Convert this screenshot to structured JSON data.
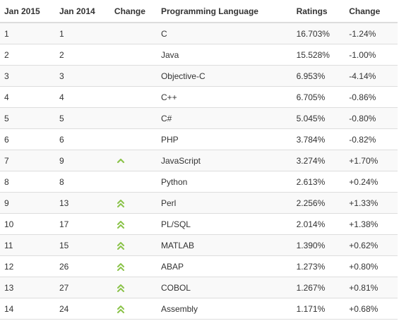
{
  "table": {
    "headers": {
      "jan2015": "Jan 2015",
      "jan2014": "Jan 2014",
      "change": "Change",
      "language": "Programming Language",
      "ratings": "Ratings",
      "diff": "Change"
    },
    "colors": {
      "arrow": "#8bc34a",
      "header_border": "#dddddd",
      "row_alt": "#f9f9f9"
    },
    "rows": [
      {
        "r2015": "1",
        "r2014": "1",
        "trend": "none",
        "language": "C",
        "rating": "16.703%",
        "diff": "-1.24%"
      },
      {
        "r2015": "2",
        "r2014": "2",
        "trend": "none",
        "language": "Java",
        "rating": "15.528%",
        "diff": "-1.00%"
      },
      {
        "r2015": "3",
        "r2014": "3",
        "trend": "none",
        "language": "Objective-C",
        "rating": "6.953%",
        "diff": "-4.14%"
      },
      {
        "r2015": "4",
        "r2014": "4",
        "trend": "none",
        "language": "C++",
        "rating": "6.705%",
        "diff": "-0.86%"
      },
      {
        "r2015": "5",
        "r2014": "5",
        "trend": "none",
        "language": "C#",
        "rating": "5.045%",
        "diff": "-0.80%"
      },
      {
        "r2015": "6",
        "r2014": "6",
        "trend": "none",
        "language": "PHP",
        "rating": "3.784%",
        "diff": "-0.82%"
      },
      {
        "r2015": "7",
        "r2014": "9",
        "trend": "up",
        "language": "JavaScript",
        "rating": "3.274%",
        "diff": "+1.70%"
      },
      {
        "r2015": "8",
        "r2014": "8",
        "trend": "none",
        "language": "Python",
        "rating": "2.613%",
        "diff": "+0.24%"
      },
      {
        "r2015": "9",
        "r2014": "13",
        "trend": "double-up",
        "language": "Perl",
        "rating": "2.256%",
        "diff": "+1.33%"
      },
      {
        "r2015": "10",
        "r2014": "17",
        "trend": "double-up",
        "language": "PL/SQL",
        "rating": "2.014%",
        "diff": "+1.38%"
      },
      {
        "r2015": "11",
        "r2014": "15",
        "trend": "double-up",
        "language": "MATLAB",
        "rating": "1.390%",
        "diff": "+0.62%"
      },
      {
        "r2015": "12",
        "r2014": "26",
        "trend": "double-up",
        "language": "ABAP",
        "rating": "1.273%",
        "diff": "+0.80%"
      },
      {
        "r2015": "13",
        "r2014": "27",
        "trend": "double-up",
        "language": "COBOL",
        "rating": "1.267%",
        "diff": "+0.81%"
      },
      {
        "r2015": "14",
        "r2014": "24",
        "trend": "double-up",
        "language": "Assembly",
        "rating": "1.171%",
        "diff": "+0.68%"
      }
    ]
  }
}
